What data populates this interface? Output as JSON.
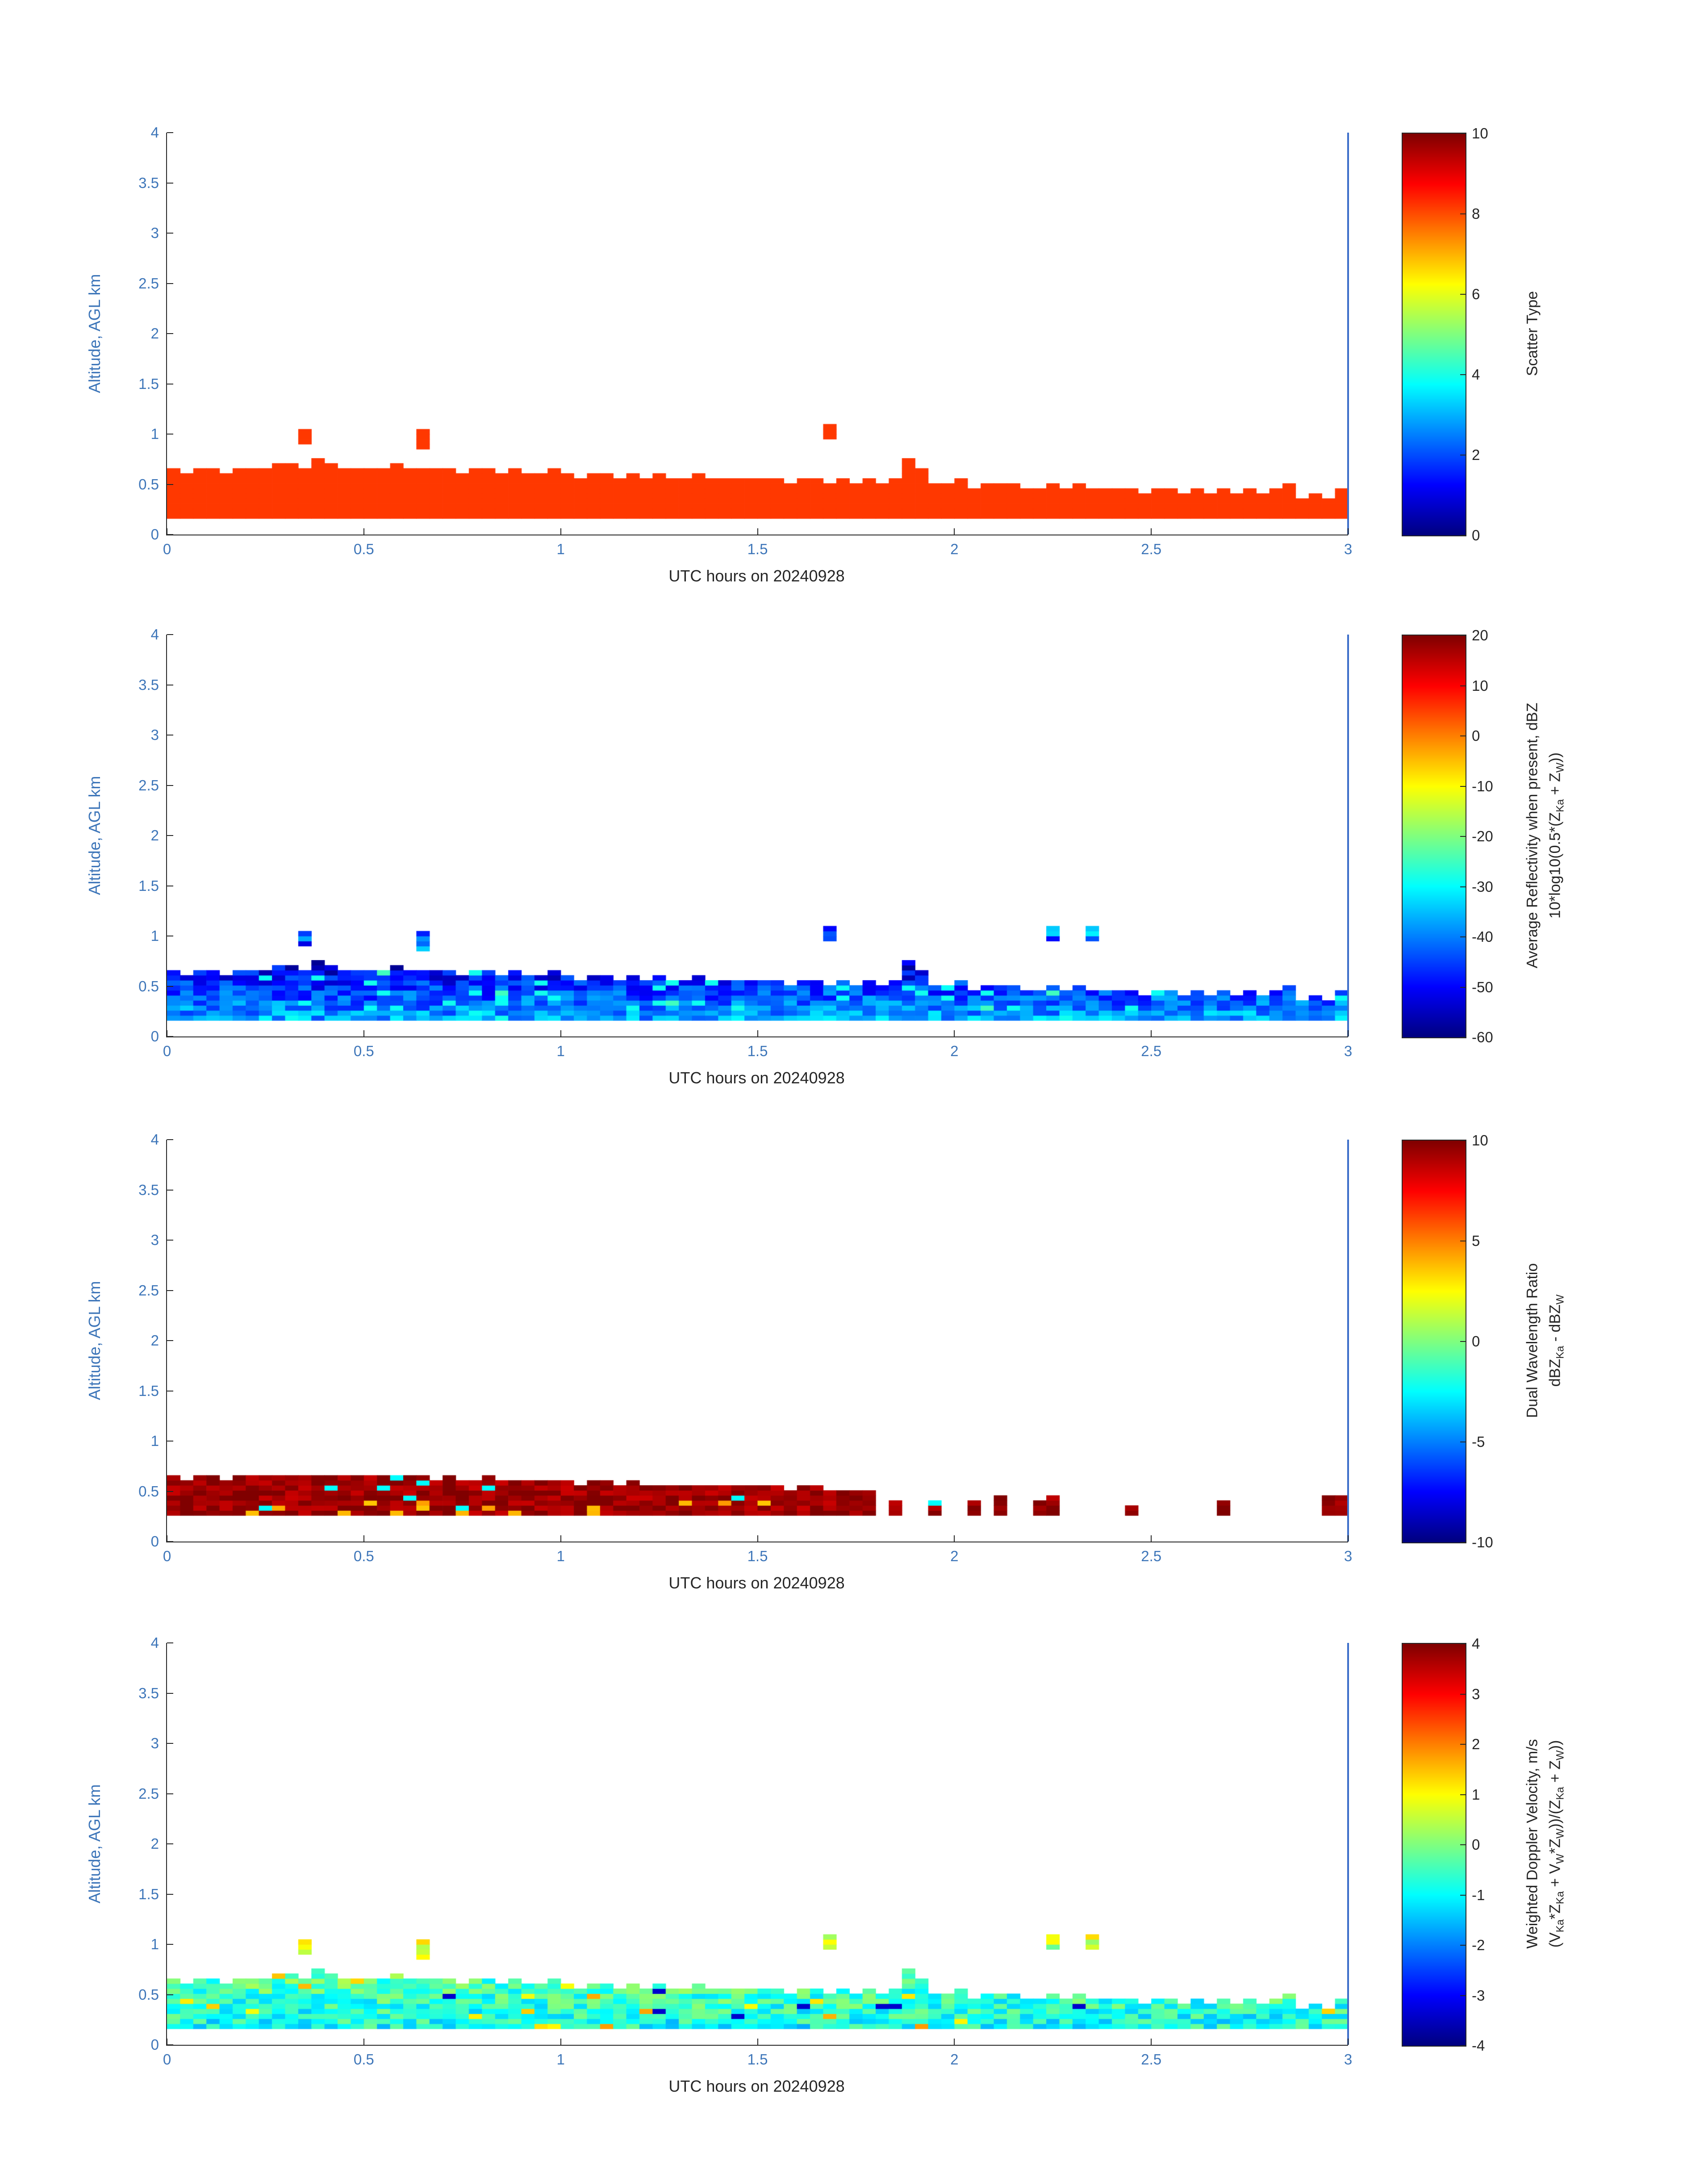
{
  "figure": {
    "background": "#ffffff",
    "colormap": "jet",
    "axis_color": "#262626",
    "tick_label_color": "#3e76b9",
    "right_edge_line_color": "#3c6ec9"
  },
  "axes": {
    "xlabel": "UTC hours on 20240928",
    "ylabel": "Altitude, AGL km",
    "x_range": [
      0,
      3
    ],
    "y_range": [
      0,
      4
    ],
    "x_ticks": [
      0,
      0.5,
      1,
      1.5,
      2,
      2.5,
      3
    ],
    "x_tick_labels": [
      "0",
      "0.5",
      "1",
      "1.5",
      "2",
      "2.5",
      "3"
    ],
    "y_ticks": [
      0,
      0.5,
      1,
      1.5,
      2,
      2.5,
      3,
      3.5,
      4
    ],
    "y_tick_labels": [
      "0",
      "0.5",
      "1",
      "1.5",
      "2",
      "2.5",
      "3",
      "3.5",
      "4"
    ]
  },
  "chart_data": [
    {
      "type": "heatmap",
      "x_range": [
        0,
        3
      ],
      "y_range": [
        0,
        4
      ],
      "time_bins": 90,
      "altitude_cell_km": 0.05,
      "base_altitude_km": 0.16,
      "envelope_top_km": [
        0.62,
        0.6,
        0.63,
        0.65,
        0.6,
        0.62,
        0.64,
        0.66,
        0.68,
        0.7,
        0.66,
        0.72,
        0.68,
        0.64,
        0.66,
        0.62,
        0.65,
        0.68,
        0.66,
        0.64,
        0.62,
        0.64,
        0.6,
        0.62,
        0.64,
        0.6,
        0.62,
        0.6,
        0.58,
        0.62,
        0.58,
        0.56,
        0.6,
        0.58,
        0.56,
        0.58,
        0.56,
        0.58,
        0.54,
        0.56,
        0.58,
        0.54,
        0.52,
        0.56,
        0.54,
        0.52,
        0.54,
        0.5,
        0.52,
        0.56,
        0.5,
        0.52,
        0.48,
        0.52,
        0.5,
        0.55,
        0.75,
        0.65,
        0.5,
        0.48,
        0.52,
        0.46,
        0.5,
        0.48,
        0.5,
        0.44,
        0.46,
        0.5,
        0.44,
        0.48,
        0.42,
        0.46,
        0.42,
        0.44,
        0.4,
        0.42,
        0.44,
        0.4,
        0.42,
        0.38,
        0.44,
        0.4,
        0.42,
        0.38,
        0.46,
        0.5,
        0.36,
        0.38,
        0.34,
        0.45
      ],
      "spikes": [
        {
          "t": 0.35,
          "z0": 0.9,
          "z1": 1.05
        },
        {
          "t": 0.62,
          "z0": 0.85,
          "z1": 1.05
        },
        {
          "t": 1.68,
          "z0": 0.95,
          "z1": 1.1
        }
      ],
      "value_model": {
        "base": 8.2,
        "zslope": 0,
        "noise": 0,
        "speck_prob": 0,
        "speck_value": 0,
        "speck2_prob": 0,
        "speck2_value": 0,
        "speck_zmax": 1.2,
        "clamp": [
          0,
          10
        ],
        "spike_base": 8.2,
        "spike_noise": 0
      },
      "colorbar": {
        "domain": [
          0,
          10
        ],
        "ticks": [
          0,
          2,
          4,
          6,
          8,
          10
        ],
        "tick_labels": [
          "0",
          "2",
          "4",
          "6",
          "8",
          "10"
        ],
        "label_lines": [
          "Scatter Type"
        ],
        "label_lines_html": [
          "Scatter Type"
        ]
      }
    },
    {
      "type": "heatmap",
      "x_range": [
        0,
        3
      ],
      "y_range": [
        0,
        4
      ],
      "time_bins": 90,
      "altitude_cell_km": 0.05,
      "base_altitude_km": 0.16,
      "envelope_top_km": [
        0.62,
        0.6,
        0.63,
        0.65,
        0.6,
        0.62,
        0.64,
        0.66,
        0.68,
        0.7,
        0.66,
        0.72,
        0.68,
        0.64,
        0.66,
        0.62,
        0.65,
        0.68,
        0.66,
        0.64,
        0.62,
        0.64,
        0.6,
        0.62,
        0.64,
        0.6,
        0.62,
        0.6,
        0.58,
        0.62,
        0.58,
        0.56,
        0.6,
        0.58,
        0.56,
        0.58,
        0.56,
        0.58,
        0.54,
        0.56,
        0.58,
        0.54,
        0.52,
        0.56,
        0.54,
        0.52,
        0.54,
        0.5,
        0.52,
        0.56,
        0.5,
        0.52,
        0.48,
        0.52,
        0.5,
        0.55,
        0.75,
        0.65,
        0.5,
        0.48,
        0.52,
        0.46,
        0.5,
        0.48,
        0.5,
        0.44,
        0.46,
        0.5,
        0.44,
        0.48,
        0.42,
        0.46,
        0.42,
        0.44,
        0.4,
        0.42,
        0.44,
        0.4,
        0.42,
        0.38,
        0.44,
        0.4,
        0.42,
        0.38,
        0.46,
        0.5,
        0.36,
        0.38,
        0.34,
        0.45
      ],
      "spikes": [
        {
          "t": 0.35,
          "z0": 0.9,
          "z1": 1.05
        },
        {
          "t": 0.62,
          "z0": 0.85,
          "z1": 1.05
        },
        {
          "t": 1.68,
          "z0": 0.95,
          "z1": 1.1
        },
        {
          "t": 2.24,
          "z0": 0.95,
          "z1": 1.08
        },
        {
          "t": 2.34,
          "z0": 0.95,
          "z1": 1.08
        }
      ],
      "value_model": {
        "base": -37,
        "zslope": -30,
        "noise": 7,
        "speck_prob": 0.05,
        "speck_value": -29,
        "speck2_prob": 0.01,
        "speck2_value": -25,
        "speck_zmax": 1.2,
        "clamp": [
          -60,
          -24
        ],
        "spike_base": -41,
        "spike_noise": 11
      },
      "colorbar": {
        "domain": [
          -60,
          20
        ],
        "ticks": [
          -60,
          -50,
          -40,
          -30,
          -20,
          -10,
          0,
          10,
          20
        ],
        "tick_labels": [
          "-60",
          "-50",
          "-40",
          "-30",
          "-20",
          "-10",
          "0",
          "10",
          "20"
        ],
        "label_lines": [
          "Average Reflectivity when present, dBZ",
          "10*log10(0.5*(Z_Ka + Z_W))"
        ],
        "label_lines_html": [
          "Average Reflectivity when present, dBZ",
          "10*log10(0.5*(Z<sub>Ka</sub> + Z<sub>W</sub>))"
        ]
      }
    },
    {
      "type": "heatmap",
      "x_range": [
        0,
        3
      ],
      "y_range": [
        0,
        4
      ],
      "time_bins": 90,
      "altitude_cell_km": 0.05,
      "base_altitude_km": 0.26,
      "envelope_top_km": [
        0.62,
        0.6,
        0.62,
        0.62,
        0.6,
        0.62,
        0.62,
        0.62,
        0.62,
        0.62,
        0.62,
        0.62,
        0.62,
        0.62,
        0.62,
        0.62,
        0.62,
        0.62,
        0.62,
        0.62,
        0.6,
        0.62,
        0.6,
        0.6,
        0.62,
        0.6,
        0.6,
        0.58,
        0.58,
        0.6,
        0.58,
        0.56,
        0.58,
        0.58,
        0.56,
        0.58,
        0.56,
        0.56,
        0.54,
        0.56,
        0.56,
        0.54,
        0.52,
        0.54,
        0.54,
        0.52,
        0.52,
        0.5,
        0.52,
        0.54,
        0.5,
        0.5,
        0.48,
        0.5,
        0.0,
        0.4,
        0.0,
        0.0,
        0.38,
        0.0,
        0.0,
        0.38,
        0.0,
        0.42,
        0.0,
        0.0,
        0.4,
        0.42,
        0.0,
        0.0,
        0.0,
        0.0,
        0.0,
        0.36,
        0.0,
        0.0,
        0.0,
        0.0,
        0.0,
        0.0,
        0.4,
        0.0,
        0.0,
        0.0,
        0.0,
        0.0,
        0.0,
        0.0,
        0.42,
        0.44
      ],
      "spikes": [],
      "value_model": {
        "base": 9.4,
        "zslope": 0,
        "noise": 0.9,
        "speck_prob": 0.06,
        "speck_value": 4.0,
        "speck2_prob": 0.012,
        "speck2_value": -2.5,
        "speck_zmax": 0.4,
        "clamp": [
          -10,
          10
        ],
        "spike_base": 9.4,
        "spike_noise": 0
      },
      "colorbar": {
        "domain": [
          -10,
          10
        ],
        "ticks": [
          -10,
          -5,
          0,
          5,
          10
        ],
        "tick_labels": [
          "-10",
          "-5",
          "0",
          "5",
          "10"
        ],
        "label_lines": [
          "Dual Wavelength Ratio",
          "dBZ_Ka - dBZ_W"
        ],
        "label_lines_html": [
          "Dual Wavelength Ratio",
          "dBZ<sub>Ka</sub> - dBZ<sub>W</sub>"
        ]
      }
    },
    {
      "type": "heatmap",
      "x_range": [
        0,
        3
      ],
      "y_range": [
        0,
        4
      ],
      "time_bins": 90,
      "altitude_cell_km": 0.05,
      "base_altitude_km": 0.16,
      "envelope_top_km": [
        0.62,
        0.6,
        0.63,
        0.65,
        0.6,
        0.62,
        0.64,
        0.66,
        0.68,
        0.7,
        0.66,
        0.72,
        0.68,
        0.64,
        0.66,
        0.62,
        0.65,
        0.68,
        0.66,
        0.64,
        0.62,
        0.64,
        0.6,
        0.62,
        0.64,
        0.6,
        0.62,
        0.6,
        0.58,
        0.62,
        0.58,
        0.56,
        0.6,
        0.58,
        0.56,
        0.58,
        0.56,
        0.58,
        0.54,
        0.56,
        0.58,
        0.54,
        0.52,
        0.56,
        0.54,
        0.52,
        0.54,
        0.5,
        0.52,
        0.56,
        0.5,
        0.52,
        0.48,
        0.52,
        0.5,
        0.55,
        0.75,
        0.65,
        0.5,
        0.48,
        0.52,
        0.46,
        0.5,
        0.48,
        0.5,
        0.44,
        0.46,
        0.5,
        0.44,
        0.48,
        0.42,
        0.46,
        0.42,
        0.44,
        0.4,
        0.42,
        0.44,
        0.4,
        0.42,
        0.38,
        0.44,
        0.4,
        0.42,
        0.38,
        0.46,
        0.5,
        0.36,
        0.38,
        0.34,
        0.45
      ],
      "spikes": [
        {
          "t": 0.35,
          "z0": 0.9,
          "z1": 1.05
        },
        {
          "t": 0.62,
          "z0": 0.85,
          "z1": 1.05
        },
        {
          "t": 1.68,
          "z0": 0.95,
          "z1": 1.1
        },
        {
          "t": 2.24,
          "z0": 0.95,
          "z1": 1.08
        },
        {
          "t": 2.34,
          "z0": 0.95,
          "z1": 1.08
        }
      ],
      "value_model": {
        "base": -0.9,
        "zslope": 1.2,
        "noise": 0.75,
        "speck_prob": 0.05,
        "speck_value": 1.3,
        "speck2_prob": 0.012,
        "speck2_value": -3.4,
        "speck_zmax": 1.2,
        "clamp": [
          -4,
          4
        ],
        "spike_base": 0.6,
        "spike_noise": 0.8
      },
      "colorbar": {
        "domain": [
          -4,
          4
        ],
        "ticks": [
          -4,
          -3,
          -2,
          -1,
          0,
          1,
          2,
          3,
          4
        ],
        "tick_labels": [
          "-4",
          "-3",
          "-2",
          "-1",
          "0",
          "1",
          "2",
          "3",
          "4"
        ],
        "label_lines": [
          "Weighted Doppler Velocity, m/s",
          "(V_Ka*Z_Ka + V_W*Z_W))/(Z_Ka + Z_W))"
        ],
        "label_lines_html": [
          "Weighted Doppler Velocity, m/s",
          "(V<sub>Ka</sub>*Z<sub>Ka</sub> + V<sub>W</sub>*Z<sub>W</sub>))/(Z<sub>Ka</sub> + Z<sub>W</sub>))"
        ]
      }
    }
  ]
}
